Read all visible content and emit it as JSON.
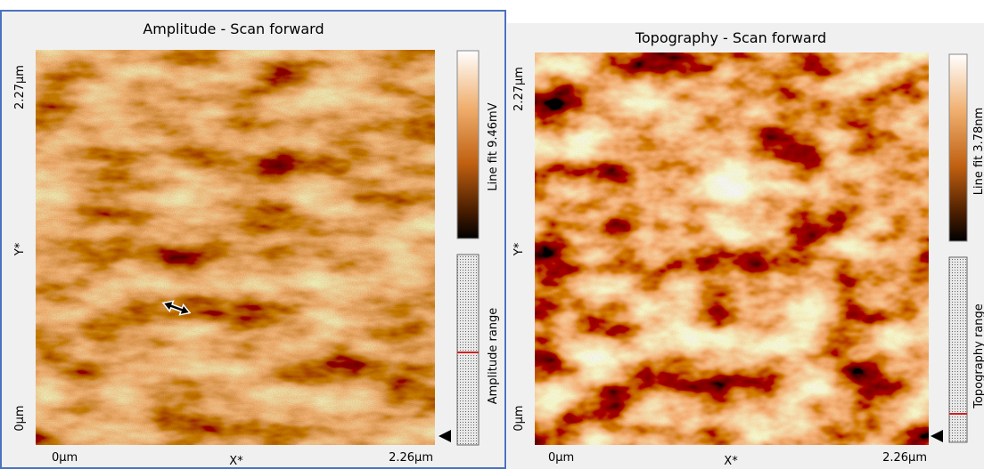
{
  "panels": [
    {
      "title": "Amplitude - Scan forward",
      "y_top": "2.27µm",
      "y_name": "Y*",
      "y_bottom": "0µm",
      "x_left": "0µm",
      "x_name": "X*",
      "x_right": "2.26µm",
      "colorbar_label": "Line fit 9.46mV",
      "range_label": "Amplitude range"
    },
    {
      "title": "Topography - Scan forward",
      "y_top": "2.27µm",
      "y_name": "Y*",
      "y_bottom": "0µm",
      "x_left": "0µm",
      "x_name": "X*",
      "x_right": "2.26µm",
      "colorbar_label": "Line fit 3.78nm",
      "range_label": "Topography range"
    }
  ]
}
